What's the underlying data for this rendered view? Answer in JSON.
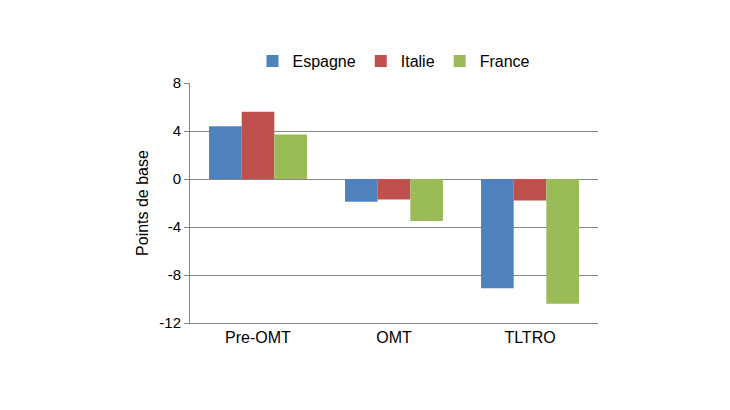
{
  "chart_data": {
    "type": "bar",
    "categories": [
      "Pre-OMT",
      "OMT",
      "TLTRO"
    ],
    "series": [
      {
        "name": "Espagne",
        "color": "#4F81BD",
        "values": [
          4.4,
          -1.9,
          -9.1
        ]
      },
      {
        "name": "Italie",
        "color": "#C0504D",
        "values": [
          5.6,
          -1.7,
          -1.8
        ]
      },
      {
        "name": "France",
        "color": "#9BBB59",
        "values": [
          3.7,
          -3.5,
          -10.4
        ]
      }
    ],
    "y_label": "Points de base",
    "ylim": [
      -12,
      8
    ],
    "yticks": [
      -12,
      -8,
      -4,
      0,
      4,
      8
    ],
    "grid": true,
    "legend": "top"
  }
}
